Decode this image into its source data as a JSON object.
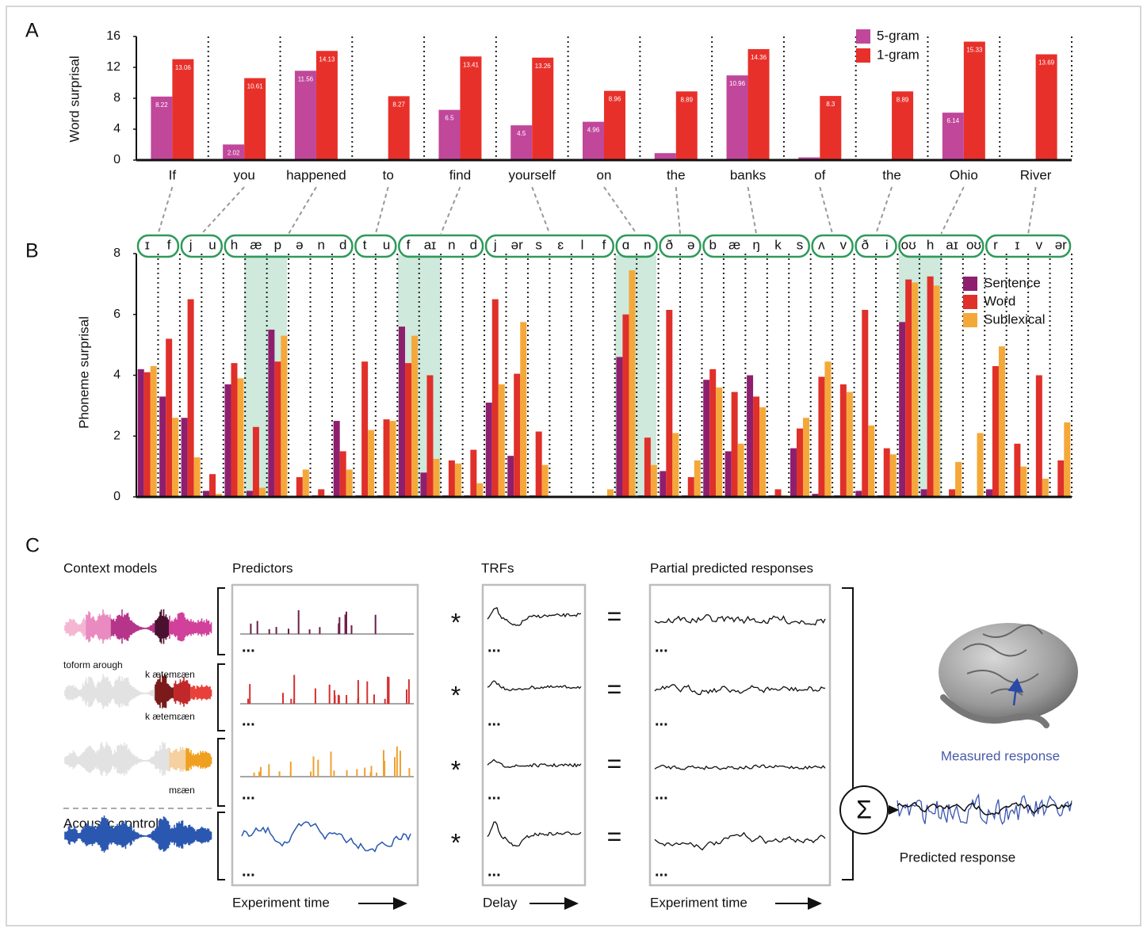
{
  "panel_labels": [
    "A",
    "B",
    "C"
  ],
  "chart_data": [
    {
      "type": "bar",
      "ylabel": "Word surprisal",
      "categories": [
        "If",
        "you",
        "happened",
        "to",
        "find",
        "yourself",
        "on",
        "the",
        "banks",
        "of",
        "the",
        "Ohio",
        "River"
      ],
      "series": [
        {
          "name": "5-gram",
          "color": "#c0479a",
          "values": [
            8.22,
            2.02,
            11.56,
            0,
            6.5,
            4.5,
            4.96,
            0.9,
            10.96,
            0.35,
            0,
            6.14,
            0
          ],
          "value_labels": [
            "8.22",
            "2.02",
            "11.56",
            null,
            "6.5",
            "4.5",
            "4.96",
            null,
            "10.96",
            null,
            null,
            "6.14",
            null
          ]
        },
        {
          "name": "1-gram",
          "color": "#e8302a",
          "values": [
            13.06,
            10.61,
            14.13,
            8.27,
            13.41,
            13.26,
            8.96,
            8.89,
            14.36,
            8.3,
            8.89,
            15.33,
            13.69
          ]
        }
      ],
      "ylim": [
        0,
        16
      ],
      "yticks": [
        0,
        4,
        8,
        12,
        16
      ],
      "legend": "upper right",
      "grid": false
    },
    {
      "type": "bar",
      "ylabel": "Phoneme surprisal",
      "categories": [
        "ɪ",
        "f",
        "j",
        "u",
        "h",
        "æ",
        "p",
        "ə",
        "n",
        "d",
        "t",
        "u",
        "f",
        "aɪ",
        "n",
        "d",
        "j",
        "ər",
        "s",
        "ɛ",
        "l",
        "f",
        "ɑ",
        "n",
        "ð",
        "ə",
        "b",
        "æ",
        "ŋ",
        "k",
        "s",
        "ʌ",
        "v",
        "ð",
        "i",
        "oʊ",
        "h",
        "aɪ",
        "oʊ",
        "r",
        "ɪ",
        "v",
        "ər"
      ],
      "series": [
        {
          "name": "Sentence",
          "color": "#8e1f6e",
          "values": [
            4.2,
            3.3,
            2.6,
            0.2,
            3.7,
            0.2,
            5.5,
            0.02,
            0.05,
            2.5,
            0.05,
            0.05,
            5.6,
            0.8,
            0.05,
            0.05,
            3.1,
            1.35,
            0.05,
            0,
            0,
            0,
            4.6,
            0.05,
            0.85,
            0.05,
            3.85,
            1.5,
            4.0,
            0.05,
            1.6,
            0.1,
            0.05,
            0.2,
            0.05,
            5.75,
            0.25,
            0.02,
            0,
            0.25,
            0.02,
            0.02,
            0.02
          ]
        },
        {
          "name": "Word",
          "color": "#e0302a",
          "values": [
            4.1,
            5.2,
            6.5,
            0.75,
            4.4,
            2.3,
            4.45,
            0.65,
            0.25,
            1.5,
            4.45,
            2.55,
            4.4,
            4.0,
            1.2,
            1.55,
            6.5,
            4.05,
            2.15,
            0,
            0,
            0,
            6.0,
            1.95,
            6.15,
            0.65,
            4.2,
            3.45,
            3.3,
            0.25,
            2.25,
            3.95,
            3.7,
            6.15,
            1.6,
            7.15,
            7.25,
            0.25,
            0,
            4.3,
            1.75,
            4.0,
            1.2
          ]
        },
        {
          "name": "Sublexical",
          "color": "#f5a83a",
          "values": [
            4.3,
            2.6,
            1.3,
            0.1,
            3.9,
            0.3,
            5.3,
            0.9,
            0.05,
            0.9,
            2.2,
            2.5,
            5.3,
            1.25,
            1.1,
            0.45,
            3.7,
            5.75,
            1.05,
            0,
            0,
            0.25,
            7.45,
            1.05,
            2.1,
            1.2,
            3.6,
            1.75,
            2.95,
            0.05,
            2.6,
            4.45,
            3.45,
            2.35,
            1.4,
            7.05,
            6.95,
            1.15,
            2.1,
            4.95,
            1.0,
            0.6,
            2.45
          ]
        }
      ],
      "ylim": [
        0,
        8
      ],
      "yticks": [
        0,
        2,
        4,
        6,
        8
      ],
      "legend": "upper right",
      "grid": false
    }
  ],
  "panel_c": {
    "columns": [
      "Context models",
      "Predictors",
      "TRFs",
      "Partial predicted responses"
    ],
    "stimulus_labels": [
      "toform arough",
      "k ætemɛæn",
      "k ætemɛæn",
      "mɛæn"
    ],
    "acoustic_label": "Acoustic controls",
    "time_axes": [
      "Experiment time",
      "Delay",
      "Experiment time"
    ],
    "operators": {
      "convolve": "*",
      "equals": "=",
      "sum": "Σ",
      "ellipsis": "..."
    },
    "measured": "Measured response",
    "predicted": "Predicted response"
  }
}
